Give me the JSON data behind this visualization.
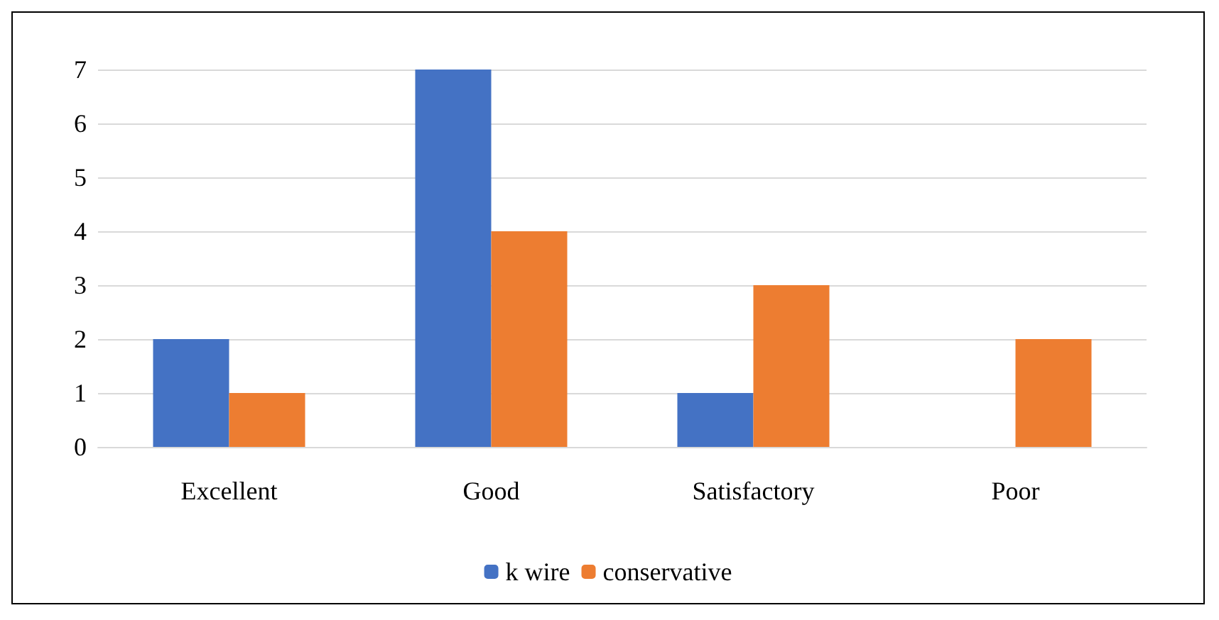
{
  "chart_data": {
    "type": "bar",
    "categories": [
      "Excellent",
      "Good",
      "Satisfactory",
      "Poor"
    ],
    "series": [
      {
        "name": "k wire",
        "color": "#4472c4",
        "values": [
          2,
          7,
          1,
          0
        ]
      },
      {
        "name": "conservative",
        "color": "#ed7d31",
        "values": [
          1,
          4,
          3,
          2
        ]
      }
    ],
    "ylim": [
      0,
      7
    ],
    "yticks": [
      0,
      1,
      2,
      3,
      4,
      5,
      6,
      7
    ],
    "grid": "y",
    "legend": "bottom"
  }
}
